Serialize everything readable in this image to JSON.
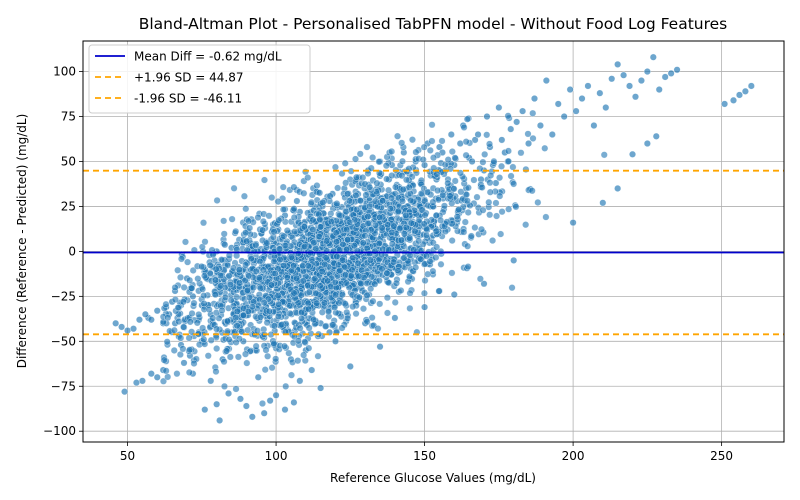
{
  "chart_data": {
    "type": "scatter",
    "title": "Bland-Altman Plot - Personalised TabPFN model - Without Food Log Features",
    "xlabel": "Reference Glucose Values (mg/dL)",
    "ylabel": "Difference (Reference - Predicted) (mg/dL)",
    "xlim": [
      35,
      271
    ],
    "ylim": [
      -106,
      117
    ],
    "xticks": [
      50,
      100,
      150,
      200,
      250
    ],
    "yticks": [
      -100,
      -75,
      -50,
      -25,
      0,
      25,
      50,
      75,
      100
    ],
    "grid": true,
    "legend_position": "top-left",
    "point_color": "#1f77b4",
    "mean_diff": -0.62,
    "upper_loa": 44.87,
    "lower_loa": -46.11,
    "mean_line_color": "#0000cc",
    "loa_line_color": "#ffa500",
    "legend": [
      "Mean Diff = -0.62 mg/dL",
      "+1.96 SD = 44.87",
      "-1.96 SD = -46.11"
    ],
    "points": [
      [
        46,
        -40
      ],
      [
        48,
        -42
      ],
      [
        50,
        -44
      ],
      [
        52,
        -43
      ],
      [
        49,
        -78
      ],
      [
        53,
        -73
      ],
      [
        55,
        -72
      ],
      [
        57,
        -37
      ],
      [
        58,
        -68
      ],
      [
        60,
        -70
      ],
      [
        62,
        -66
      ],
      [
        63,
        -31
      ],
      [
        65,
        -28
      ],
      [
        66,
        -40
      ],
      [
        68,
        -52
      ],
      [
        69,
        -62
      ],
      [
        70,
        -15
      ],
      [
        71,
        -58
      ],
      [
        72,
        -68
      ],
      [
        74,
        -45
      ],
      [
        75,
        -20
      ],
      [
        76,
        -88
      ],
      [
        78,
        -72
      ],
      [
        80,
        -85
      ],
      [
        81,
        -94
      ],
      [
        82,
        -60
      ],
      [
        84,
        -79
      ],
      [
        86,
        -38
      ],
      [
        88,
        -82
      ],
      [
        90,
        -86
      ],
      [
        92,
        -92
      ],
      [
        94,
        -70
      ],
      [
        96,
        -90
      ],
      [
        98,
        -83
      ],
      [
        100,
        -80
      ],
      [
        103,
        -88
      ],
      [
        106,
        -84
      ],
      [
        108,
        -72
      ],
      [
        112,
        -66
      ],
      [
        115,
        -76
      ],
      [
        80,
        0
      ],
      [
        82,
        -5
      ],
      [
        85,
        2
      ],
      [
        88,
        -18
      ],
      [
        90,
        5
      ],
      [
        92,
        -12
      ],
      [
        95,
        10
      ],
      [
        97,
        -25
      ],
      [
        99,
        15
      ],
      [
        101,
        -3
      ],
      [
        103,
        20
      ],
      [
        105,
        -30
      ],
      [
        107,
        28
      ],
      [
        109,
        8
      ],
      [
        111,
        -15
      ],
      [
        113,
        25
      ],
      [
        115,
        -40
      ],
      [
        117,
        18
      ],
      [
        119,
        32
      ],
      [
        121,
        -10
      ],
      [
        123,
        35
      ],
      [
        125,
        5
      ],
      [
        127,
        40
      ],
      [
        129,
        -22
      ],
      [
        131,
        45
      ],
      [
        133,
        12
      ],
      [
        135,
        42
      ],
      [
        137,
        -5
      ],
      [
        139,
        48
      ],
      [
        141,
        30
      ],
      [
        143,
        55
      ],
      [
        145,
        22
      ],
      [
        147,
        50
      ],
      [
        149,
        38
      ],
      [
        151,
        60
      ],
      [
        153,
        15
      ],
      [
        155,
        58
      ],
      [
        157,
        45
      ],
      [
        159,
        65
      ],
      [
        161,
        28
      ],
      [
        163,
        70
      ],
      [
        165,
        52
      ],
      [
        167,
        62
      ],
      [
        169,
        40
      ],
      [
        171,
        75
      ],
      [
        173,
        48
      ],
      [
        175,
        80
      ],
      [
        177,
        55
      ],
      [
        179,
        68
      ],
      [
        181,
        72
      ],
      [
        183,
        78
      ],
      [
        185,
        60
      ],
      [
        187,
        85
      ],
      [
        189,
        70
      ],
      [
        191,
        95
      ],
      [
        193,
        65
      ],
      [
        195,
        82
      ],
      [
        197,
        75
      ],
      [
        199,
        90
      ],
      [
        201,
        78
      ],
      [
        203,
        85
      ],
      [
        205,
        92
      ],
      [
        207,
        70
      ],
      [
        209,
        88
      ],
      [
        211,
        80
      ],
      [
        213,
        96
      ],
      [
        215,
        104
      ],
      [
        217,
        98
      ],
      [
        219,
        92
      ],
      [
        221,
        86
      ],
      [
        223,
        95
      ],
      [
        225,
        100
      ],
      [
        227,
        108
      ],
      [
        229,
        90
      ],
      [
        231,
        97
      ],
      [
        233,
        99
      ],
      [
        235,
        101
      ],
      [
        251,
        82
      ],
      [
        254,
        84
      ],
      [
        256,
        87
      ],
      [
        258,
        89
      ],
      [
        260,
        92
      ],
      [
        200,
        16
      ],
      [
        210,
        27
      ],
      [
        215,
        35
      ],
      [
        220,
        54
      ],
      [
        225,
        60
      ],
      [
        228,
        64
      ],
      [
        180,
        -5
      ],
      [
        170,
        -18
      ],
      [
        160,
        -24
      ],
      [
        155,
        -22
      ],
      [
        150,
        -31
      ],
      [
        145,
        -15
      ],
      [
        140,
        -37
      ],
      [
        135,
        -53
      ],
      [
        130,
        -40
      ],
      [
        125,
        -64
      ],
      [
        120,
        -50
      ],
      [
        118,
        -45
      ],
      [
        110,
        -55
      ],
      [
        105,
        -60
      ],
      [
        100,
        -52
      ],
      [
        96,
        -48
      ],
      [
        93,
        -55
      ],
      [
        89,
        -50
      ],
      [
        86,
        -45
      ],
      [
        83,
        -40
      ],
      [
        78,
        -35
      ],
      [
        75,
        -30
      ],
      [
        72,
        -25
      ],
      [
        70,
        -38
      ],
      [
        68,
        -30
      ],
      [
        66,
        -22
      ],
      [
        64,
        -35
      ],
      [
        62,
        -40
      ],
      [
        60,
        -33
      ],
      [
        58,
        -38
      ],
      [
        56,
        -35
      ],
      [
        54,
        -38
      ],
      [
        100,
        5
      ],
      [
        102,
        -20
      ],
      [
        104,
        10
      ],
      [
        106,
        -8
      ],
      [
        108,
        22
      ],
      [
        110,
        2
      ],
      [
        112,
        -28
      ],
      [
        114,
        15
      ],
      [
        116,
        -12
      ],
      [
        118,
        28
      ],
      [
        120,
        0
      ],
      [
        122,
        20
      ],
      [
        124,
        -18
      ],
      [
        126,
        30
      ],
      [
        128,
        8
      ],
      [
        130,
        25
      ],
      [
        132,
        -8
      ],
      [
        134,
        35
      ],
      [
        136,
        18
      ],
      [
        138,
        40
      ],
      [
        140,
        10
      ],
      [
        142,
        32
      ],
      [
        144,
        45
      ],
      [
        146,
        20
      ],
      [
        148,
        30
      ],
      [
        150,
        48
      ],
      [
        152,
        25
      ],
      [
        154,
        40
      ],
      [
        156,
        55
      ],
      [
        158,
        33
      ],
      [
        160,
        48
      ],
      [
        162,
        60
      ],
      [
        164,
        35
      ],
      [
        166,
        50
      ],
      [
        168,
        65
      ],
      [
        170,
        45
      ],
      [
        172,
        58
      ],
      [
        174,
        38
      ],
      [
        176,
        62
      ],
      [
        178,
        50
      ]
    ]
  }
}
